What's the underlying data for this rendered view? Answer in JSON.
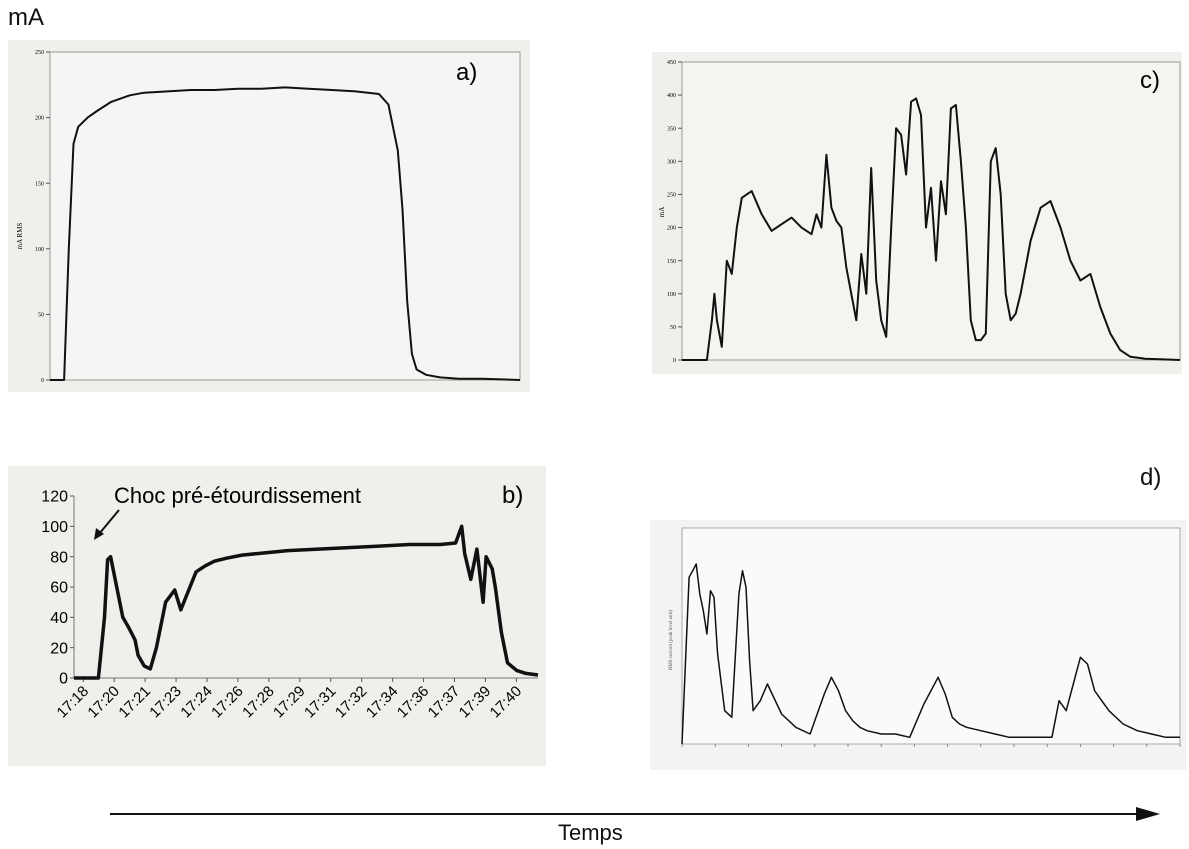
{
  "figure": {
    "y_unit_label": "mA",
    "time_label": "Temps"
  },
  "chart_data": [
    {
      "panel": "a)",
      "type": "line",
      "ylabel": "mA RMS",
      "ylim": [
        0,
        250
      ],
      "yticks": [
        0,
        50,
        100,
        150,
        200,
        250
      ],
      "x": [
        0,
        3,
        4,
        5,
        6,
        8,
        10,
        13,
        17,
        20,
        25,
        30,
        35,
        40,
        45,
        50,
        55,
        60,
        65,
        70,
        72,
        74,
        75,
        76,
        77,
        78,
        80,
        83,
        87,
        92,
        100
      ],
      "y": [
        0,
        0,
        100,
        180,
        193,
        200,
        205,
        212,
        217,
        219,
        220,
        221,
        221,
        222,
        222,
        223,
        222,
        221,
        220,
        218,
        210,
        175,
        130,
        60,
        20,
        8,
        4,
        2,
        1,
        1,
        0
      ]
    },
    {
      "panel": "b)",
      "type": "line",
      "ylim": [
        0,
        120
      ],
      "yticks": [
        0,
        20,
        40,
        60,
        80,
        100,
        120
      ],
      "x_tick_labels": [
        "17:18",
        "17:20",
        "17:21",
        "17:23",
        "17:24",
        "17:26",
        "17:28",
        "17:29",
        "17:31",
        "17:32",
        "17:34",
        "17:36",
        "17:37",
        "17:39",
        "17:40"
      ],
      "annotation": "Choc pré-étourdissement",
      "x": [
        0,
        0.8,
        1.0,
        1.1,
        1.2,
        1.4,
        1.6,
        1.8,
        2.0,
        2.1,
        2.3,
        2.5,
        2.7,
        3.0,
        3.3,
        3.5,
        3.7,
        4.0,
        4.3,
        4.6,
        5.0,
        5.5,
        6,
        7,
        8,
        9,
        10,
        11,
        12,
        12.5,
        12.7,
        12.8,
        13.0,
        13.2,
        13.4,
        13.5,
        13.7,
        13.8,
        14.0,
        14.2,
        14.5,
        14.8,
        15.2
      ],
      "y": [
        0,
        0,
        40,
        78,
        80,
        60,
        40,
        33,
        25,
        15,
        8,
        6,
        20,
        50,
        58,
        45,
        55,
        70,
        74,
        77,
        79,
        81,
        82,
        84,
        85,
        86,
        87,
        88,
        88,
        89,
        100,
        82,
        65,
        85,
        50,
        80,
        72,
        60,
        30,
        10,
        5,
        3,
        2
      ]
    },
    {
      "panel": "c)",
      "type": "line",
      "ylabel": "mA",
      "ylim": [
        0,
        450
      ],
      "yticks": [
        0,
        50,
        100,
        150,
        200,
        250,
        300,
        350,
        400,
        450
      ],
      "x": [
        0,
        5,
        6,
        6.5,
        7,
        8,
        9,
        10,
        11,
        12,
        14,
        16,
        18,
        20,
        22,
        24,
        26,
        27,
        28,
        29,
        30,
        31,
        32,
        33,
        34,
        35,
        36,
        37,
        38,
        39,
        40,
        41,
        42,
        43,
        44,
        45,
        46,
        47,
        48,
        49,
        50,
        51,
        52,
        53,
        54,
        55,
        56,
        57,
        58,
        59,
        60,
        61,
        62,
        63,
        64,
        65,
        66,
        67,
        68,
        70,
        72,
        74,
        76,
        78,
        80,
        82,
        84,
        86,
        88,
        90,
        93,
        96,
        100
      ],
      "y": [
        0,
        0,
        60,
        100,
        60,
        20,
        150,
        130,
        200,
        245,
        255,
        220,
        195,
        205,
        215,
        200,
        190,
        220,
        200,
        310,
        230,
        210,
        200,
        140,
        100,
        60,
        160,
        100,
        290,
        120,
        60,
        35,
        200,
        350,
        340,
        280,
        390,
        395,
        370,
        200,
        260,
        150,
        270,
        220,
        380,
        385,
        300,
        200,
        60,
        30,
        30,
        40,
        300,
        320,
        250,
        100,
        60,
        70,
        100,
        180,
        230,
        240,
        200,
        150,
        120,
        130,
        80,
        40,
        15,
        5,
        2,
        1,
        0
      ]
    },
    {
      "panel": "d)",
      "type": "line",
      "ylabel": "RMS current (peak level unit)",
      "x": [
        0,
        1,
        1.5,
        2,
        2.5,
        3,
        3.5,
        4,
        4.5,
        5,
        6,
        7,
        8,
        8.5,
        9,
        9.5,
        10,
        11,
        12,
        14,
        16,
        18,
        20,
        21,
        22,
        23,
        24,
        25,
        26,
        28,
        30,
        32,
        34,
        36,
        37,
        38,
        39,
        40,
        42,
        44,
        46,
        48,
        50,
        52,
        53,
        54,
        55,
        56,
        57,
        58,
        60,
        62,
        64,
        66,
        68,
        70
      ],
      "y": [
        0,
        5.0,
        5.2,
        5.4,
        4.5,
        4.0,
        3.3,
        4.6,
        4.4,
        2.7,
        1.0,
        0.8,
        4.5,
        5.2,
        4.7,
        2.5,
        1.0,
        1.3,
        1.8,
        0.9,
        0.5,
        0.3,
        1.5,
        2.0,
        1.6,
        1.0,
        0.7,
        0.5,
        0.4,
        0.3,
        0.3,
        0.2,
        1.2,
        2.0,
        1.5,
        0.8,
        0.6,
        0.5,
        0.4,
        0.3,
        0.2,
        0.2,
        0.2,
        0.2,
        1.3,
        1.0,
        1.8,
        2.6,
        2.4,
        1.6,
        1.0,
        0.6,
        0.4,
        0.3,
        0.2,
        0.2
      ]
    }
  ]
}
